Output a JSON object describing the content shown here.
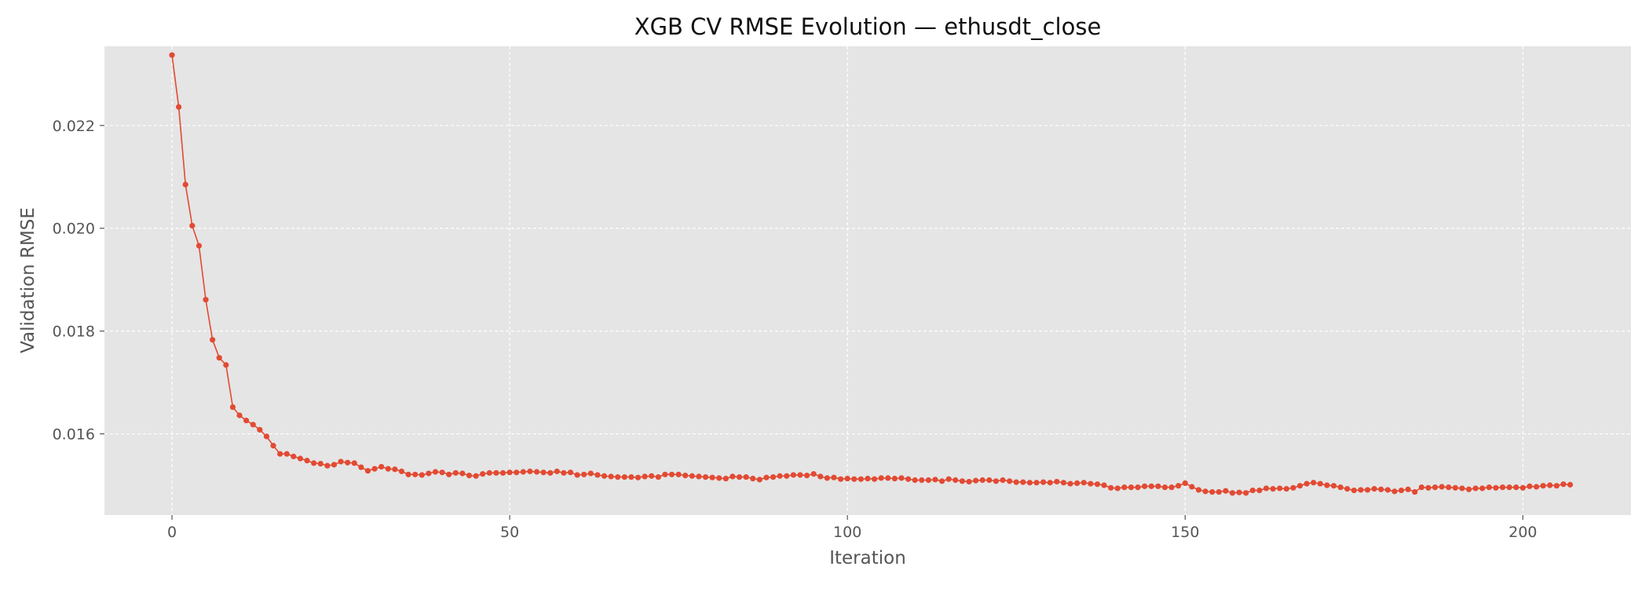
{
  "chart_data": {
    "type": "line",
    "title": "XGB CV RMSE Evolution — ethusdt_close",
    "xlabel": "Iteration",
    "ylabel": "Validation RMSE",
    "xlim": [
      -10,
      216
    ],
    "ylim": [
      0.01442,
      0.02354
    ],
    "x_ticks": [
      0,
      50,
      100,
      150,
      200
    ],
    "x_tick_labels": [
      "0",
      "50",
      "100",
      "150",
      "200"
    ],
    "y_ticks": [
      0.016,
      0.018,
      0.02,
      0.022
    ],
    "y_tick_labels": [
      "0.016",
      "0.018",
      "0.020",
      "0.022"
    ],
    "grid": true,
    "marker": "circle",
    "colors": {
      "line": "#e24a33",
      "plot_background": "#e5e5e5",
      "grid": "#ffffff"
    },
    "x_start": 0,
    "series": [
      {
        "values": [
          0.02337,
          0.02236,
          0.02085,
          0.02005,
          0.01966,
          0.01861,
          0.01783,
          0.01748,
          0.01734,
          0.01652,
          0.01636,
          0.01626,
          0.01618,
          0.01608,
          0.01595,
          0.01577,
          0.01561,
          0.01561,
          0.01556,
          0.01552,
          0.01548,
          0.01543,
          0.01542,
          0.01538,
          0.0154,
          0.01546,
          0.01544,
          0.01543,
          0.01535,
          0.01528,
          0.01532,
          0.01536,
          0.01532,
          0.01531,
          0.01527,
          0.01521,
          0.01521,
          0.0152,
          0.01523,
          0.01526,
          0.01525,
          0.01521,
          0.01524,
          0.01523,
          0.01519,
          0.01518,
          0.01522,
          0.01524,
          0.01524,
          0.01524,
          0.01525,
          0.01525,
          0.01526,
          0.01527,
          0.01526,
          0.01525,
          0.01524,
          0.01527,
          0.01524,
          0.01525,
          0.0152,
          0.01521,
          0.01523,
          0.0152,
          0.01518,
          0.01517,
          0.01516,
          0.01516,
          0.01516,
          0.01515,
          0.01517,
          0.01518,
          0.01516,
          0.01521,
          0.01521,
          0.01521,
          0.01519,
          0.01518,
          0.01517,
          0.01516,
          0.01515,
          0.01514,
          0.01513,
          0.01517,
          0.01516,
          0.01516,
          0.01513,
          0.01511,
          0.01515,
          0.01516,
          0.01518,
          0.01518,
          0.0152,
          0.0152,
          0.01519,
          0.01522,
          0.01517,
          0.01514,
          0.01515,
          0.01512,
          0.01513,
          0.01512,
          0.01512,
          0.01513,
          0.01512,
          0.01514,
          0.01514,
          0.01513,
          0.01514,
          0.01512,
          0.0151,
          0.0151,
          0.0151,
          0.01511,
          0.01508,
          0.01512,
          0.0151,
          0.01508,
          0.01507,
          0.01509,
          0.0151,
          0.0151,
          0.01508,
          0.0151,
          0.01508,
          0.01506,
          0.01506,
          0.01505,
          0.01505,
          0.01506,
          0.01505,
          0.01507,
          0.01505,
          0.01503,
          0.01504,
          0.01505,
          0.01503,
          0.01502,
          0.015,
          0.01495,
          0.01494,
          0.01496,
          0.01496,
          0.01496,
          0.01498,
          0.01498,
          0.01498,
          0.01496,
          0.01496,
          0.01499,
          0.01504,
          0.01497,
          0.01491,
          0.01488,
          0.01487,
          0.01487,
          0.01489,
          0.01485,
          0.01486,
          0.01485,
          0.0149,
          0.0149,
          0.01494,
          0.01493,
          0.01494,
          0.01493,
          0.01495,
          0.01499,
          0.01503,
          0.01505,
          0.01503,
          0.015,
          0.01499,
          0.01496,
          0.01493,
          0.0149,
          0.01491,
          0.01491,
          0.01493,
          0.01492,
          0.01491,
          0.01488,
          0.0149,
          0.01492,
          0.01487,
          0.01496,
          0.01495,
          0.01496,
          0.01497,
          0.01496,
          0.01495,
          0.01494,
          0.01492,
          0.01494,
          0.01494,
          0.01496,
          0.01495,
          0.01496,
          0.01496,
          0.01496,
          0.01495,
          0.01498,
          0.01497,
          0.01499,
          0.015,
          0.01499,
          0.01502,
          0.01501
        ]
      }
    ]
  }
}
